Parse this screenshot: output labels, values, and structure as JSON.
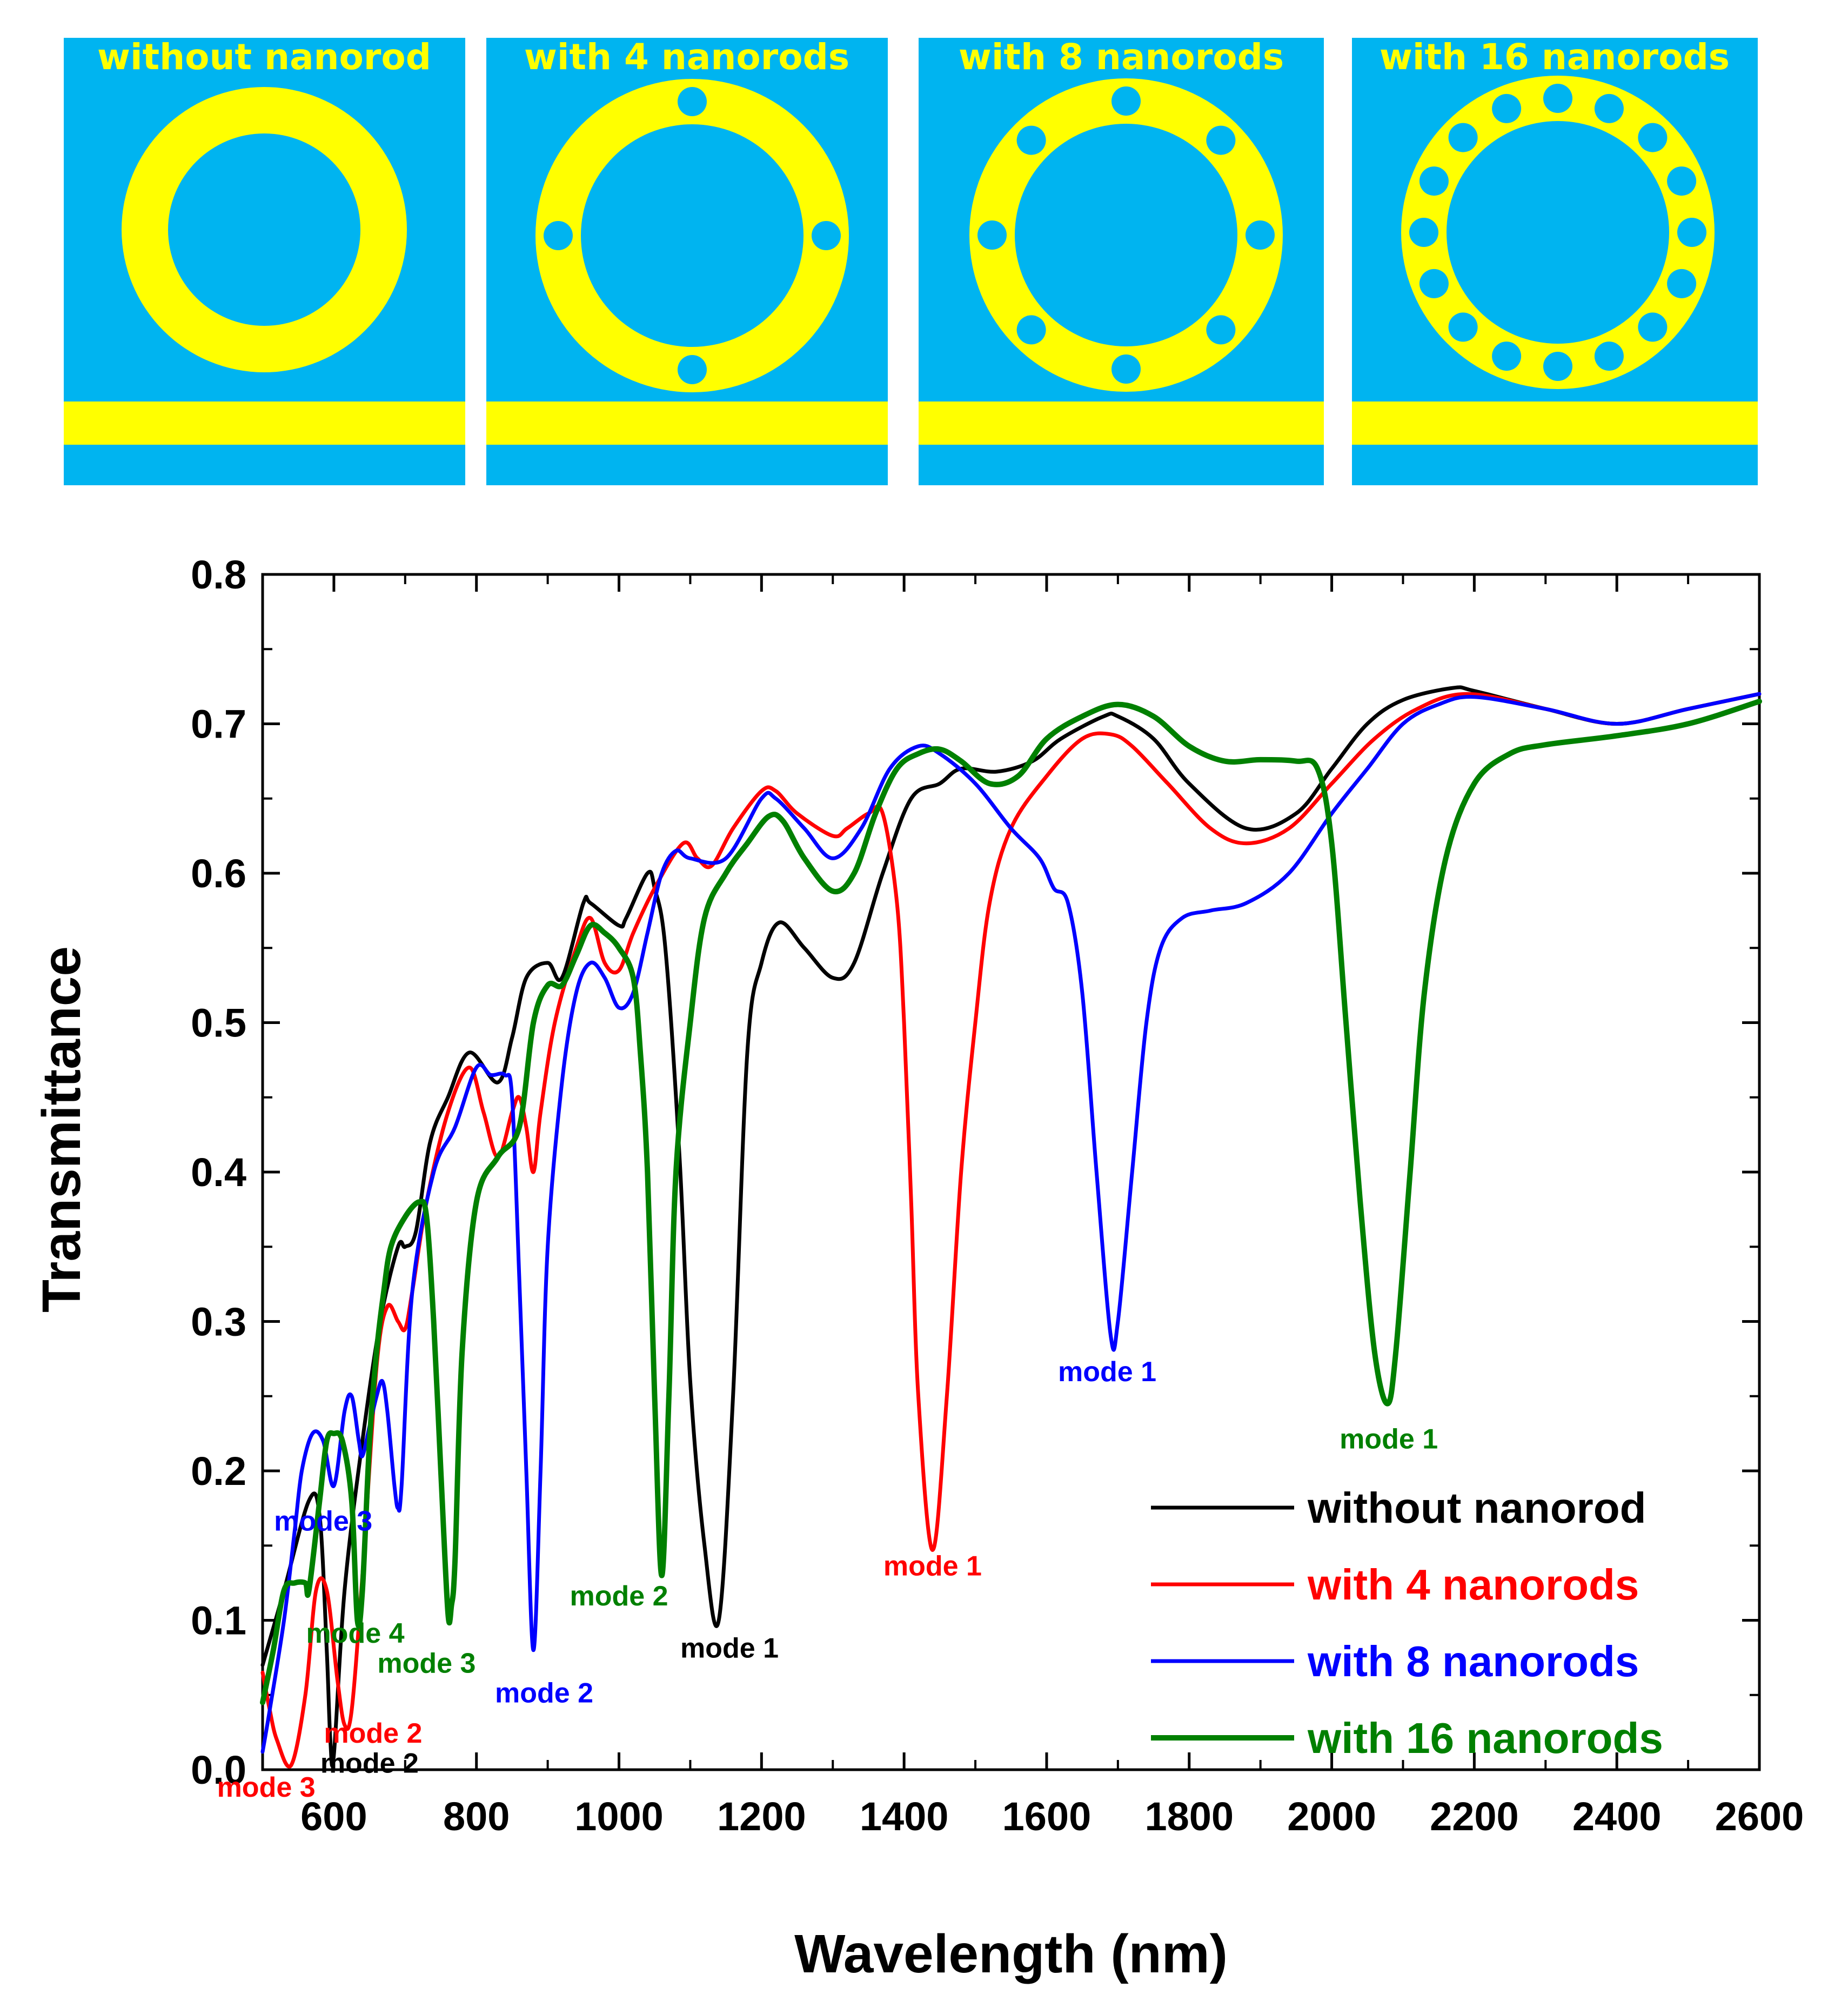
{
  "colors": {
    "blue_bg": "#00b4f0",
    "ring_yellow": "#ffff00",
    "black": "#000000",
    "red": "#ff0000",
    "blue": "#0000ff",
    "green": "#008000"
  },
  "panels": [
    {
      "title": "without nanorod",
      "nanorods": 0
    },
    {
      "title": "with 4 nanorods",
      "nanorods": 4
    },
    {
      "title": "with 8 nanorods",
      "nanorods": 8
    },
    {
      "title": "with 16 nanorods",
      "nanorods": 16
    }
  ],
  "chart_data": {
    "type": "line",
    "title": "",
    "xlabel": "Wavelength (nm)",
    "ylabel": "Transmittance",
    "xlim": [
      500,
      2600
    ],
    "ylim": [
      0.0,
      0.8
    ],
    "xticks": [
      600,
      800,
      1000,
      1200,
      1400,
      1600,
      1800,
      2000,
      2200,
      2400,
      2600
    ],
    "xtick_labels": [
      "600",
      "800",
      "1000",
      "1200",
      "1400",
      "1600",
      "1800",
      "2000",
      "2200",
      "2400",
      "2600"
    ],
    "yticks": [
      0.0,
      0.1,
      0.2,
      0.3,
      0.4,
      0.5,
      0.6,
      0.7,
      0.8
    ],
    "ytick_labels": [
      "0.0",
      "0.1",
      "0.2",
      "0.3",
      "0.4",
      "0.5",
      "0.6",
      "0.7",
      "0.8"
    ],
    "legend_position": "bottom-right",
    "series": [
      {
        "name": "without nanorod",
        "color": "#000000",
        "x": [
          500,
          530,
          565,
          580,
          590,
          595,
          600,
          615,
          640,
          665,
          690,
          700,
          715,
          735,
          760,
          790,
          830,
          850,
          870,
          900,
          920,
          950,
          960,
          1000,
          1010,
          1040,
          1050,
          1065,
          1085,
          1100,
          1120,
          1140,
          1160,
          1180,
          1200,
          1225,
          1260,
          1300,
          1330,
          1370,
          1410,
          1450,
          1480,
          1530,
          1580,
          1620,
          1680,
          1700,
          1750,
          1800,
          1880,
          1950,
          2000,
          2050,
          2100,
          2170,
          2200,
          2300,
          2400,
          2500,
          2600
        ],
        "y": [
          0.07,
          0.12,
          0.18,
          0.17,
          0.08,
          0.02,
          0.01,
          0.12,
          0.22,
          0.3,
          0.35,
          0.35,
          0.36,
          0.42,
          0.45,
          0.48,
          0.46,
          0.49,
          0.53,
          0.54,
          0.53,
          0.58,
          0.58,
          0.565,
          0.57,
          0.6,
          0.59,
          0.55,
          0.41,
          0.26,
          0.15,
          0.1,
          0.25,
          0.48,
          0.54,
          0.567,
          0.55,
          0.53,
          0.54,
          0.6,
          0.65,
          0.66,
          0.67,
          0.668,
          0.675,
          0.69,
          0.705,
          0.705,
          0.69,
          0.66,
          0.63,
          0.64,
          0.67,
          0.7,
          0.716,
          0.724,
          0.722,
          0.71,
          0.7,
          0.71,
          0.72
        ],
        "annotations": [
          {
            "text": "mode 2",
            "x": 650,
            "y": -0.002
          },
          {
            "text": "mode 1",
            "x": 1155,
            "y": 0.075
          }
        ]
      },
      {
        "name": "with 4 nanorods",
        "color": "#ff0000",
        "x": [
          500,
          510,
          520,
          540,
          560,
          575,
          590,
          605,
          615,
          625,
          640,
          660,
          675,
          690,
          700,
          710,
          730,
          760,
          790,
          810,
          830,
          850,
          860,
          870,
          880,
          890,
          910,
          940,
          960,
          980,
          1000,
          1020,
          1050,
          1090,
          1110,
          1130,
          1160,
          1200,
          1220,
          1250,
          1300,
          1320,
          1350,
          1370,
          1390,
          1400,
          1410,
          1420,
          1440,
          1460,
          1480,
          1500,
          1520,
          1550,
          1600,
          1650,
          1690,
          1720,
          1770,
          1830,
          1880,
          1940,
          2000,
          2060,
          2120,
          2190,
          2300,
          2400,
          2500,
          2600
        ],
        "y": [
          0.065,
          0.04,
          0.02,
          0.003,
          0.05,
          0.12,
          0.12,
          0.06,
          0.03,
          0.04,
          0.13,
          0.27,
          0.31,
          0.3,
          0.295,
          0.32,
          0.38,
          0.44,
          0.47,
          0.44,
          0.41,
          0.44,
          0.45,
          0.43,
          0.4,
          0.44,
          0.5,
          0.55,
          0.57,
          0.54,
          0.535,
          0.56,
          0.59,
          0.62,
          0.61,
          0.605,
          0.63,
          0.655,
          0.655,
          0.64,
          0.625,
          0.63,
          0.64,
          0.64,
          0.58,
          0.5,
          0.38,
          0.25,
          0.147,
          0.25,
          0.4,
          0.5,
          0.58,
          0.63,
          0.665,
          0.69,
          0.693,
          0.685,
          0.66,
          0.63,
          0.62,
          0.63,
          0.66,
          0.69,
          0.71,
          0.72,
          0.71,
          0.7,
          0.71,
          0.72
        ],
        "annotations": [
          {
            "text": "mode 3",
            "x": 505,
            "y": -0.018
          },
          {
            "text": "mode 2",
            "x": 655,
            "y": 0.018
          },
          {
            "text": "mode 1",
            "x": 1440,
            "y": 0.13
          }
        ]
      },
      {
        "name": "with 8 nanorods",
        "color": "#0000ff",
        "x": [
          500,
          510,
          530,
          545,
          555,
          570,
          585,
          600,
          615,
          625,
          635,
          640,
          650,
          660,
          668,
          675,
          685,
          690,
          695,
          710,
          740,
          770,
          800,
          820,
          840,
          850,
          860,
          870,
          880,
          890,
          900,
          920,
          940,
          960,
          980,
          1000,
          1020,
          1040,
          1060,
          1080,
          1100,
          1150,
          1200,
          1220,
          1260,
          1300,
          1340,
          1380,
          1420,
          1450,
          1500,
          1550,
          1590,
          1610,
          1630,
          1650,
          1670,
          1690,
          1700,
          1720,
          1740,
          1760,
          1790,
          1830,
          1880,
          1940,
          2000,
          2050,
          2100,
          2150,
          2200,
          2300,
          2400,
          2500,
          2600
        ],
        "y": [
          0.012,
          0.04,
          0.1,
          0.16,
          0.2,
          0.225,
          0.22,
          0.19,
          0.24,
          0.25,
          0.22,
          0.21,
          0.23,
          0.25,
          0.26,
          0.24,
          0.19,
          0.175,
          0.19,
          0.32,
          0.4,
          0.43,
          0.47,
          0.465,
          0.465,
          0.45,
          0.33,
          0.2,
          0.08,
          0.2,
          0.35,
          0.46,
          0.52,
          0.54,
          0.53,
          0.51,
          0.52,
          0.56,
          0.6,
          0.615,
          0.61,
          0.61,
          0.65,
          0.65,
          0.63,
          0.61,
          0.63,
          0.67,
          0.685,
          0.68,
          0.66,
          0.63,
          0.61,
          0.59,
          0.58,
          0.52,
          0.4,
          0.29,
          0.3,
          0.4,
          0.5,
          0.55,
          0.57,
          0.575,
          0.58,
          0.6,
          0.64,
          0.67,
          0.7,
          0.713,
          0.718,
          0.71,
          0.7,
          0.71,
          0.72
        ],
        "annotations": [
          {
            "text": "mode 3",
            "x": 585,
            "y": 0.16
          },
          {
            "text": "mode 2",
            "x": 895,
            "y": 0.045
          },
          {
            "text": "mode 1",
            "x": 1685,
            "y": 0.26
          }
        ]
      },
      {
        "name": "with 16 nanorods",
        "color": "#008000",
        "x": [
          500,
          515,
          530,
          545,
          560,
          565,
          580,
          590,
          600,
          612,
          625,
          633,
          640,
          650,
          660,
          670,
          680,
          700,
          720,
          730,
          740,
          750,
          760,
          765,
          770,
          780,
          800,
          830,
          860,
          880,
          900,
          920,
          940,
          960,
          980,
          1000,
          1020,
          1030,
          1040,
          1050,
          1060,
          1070,
          1080,
          1100,
          1120,
          1150,
          1180,
          1210,
          1230,
          1260,
          1300,
          1330,
          1360,
          1390,
          1420,
          1450,
          1480,
          1520,
          1560,
          1600,
          1650,
          1700,
          1750,
          1800,
          1850,
          1900,
          1950,
          1980,
          2000,
          2020,
          2040,
          2060,
          2078,
          2090,
          2110,
          2130,
          2160,
          2200,
          2250,
          2300,
          2400,
          2500,
          2600
        ],
        "y": [
          0.045,
          0.08,
          0.12,
          0.125,
          0.125,
          0.12,
          0.18,
          0.22,
          0.225,
          0.22,
          0.18,
          0.1,
          0.12,
          0.22,
          0.28,
          0.32,
          0.35,
          0.37,
          0.38,
          0.37,
          0.3,
          0.2,
          0.105,
          0.11,
          0.14,
          0.28,
          0.38,
          0.41,
          0.43,
          0.5,
          0.525,
          0.525,
          0.545,
          0.565,
          0.56,
          0.55,
          0.53,
          0.48,
          0.4,
          0.25,
          0.13,
          0.25,
          0.4,
          0.5,
          0.57,
          0.6,
          0.62,
          0.638,
          0.635,
          0.61,
          0.588,
          0.6,
          0.64,
          0.67,
          0.68,
          0.683,
          0.675,
          0.66,
          0.665,
          0.69,
          0.705,
          0.713,
          0.705,
          0.685,
          0.675,
          0.676,
          0.675,
          0.67,
          0.62,
          0.5,
          0.38,
          0.28,
          0.245,
          0.28,
          0.4,
          0.52,
          0.61,
          0.66,
          0.68,
          0.686,
          0.692,
          0.7,
          0.715
        ],
        "annotations": [
          {
            "text": "mode 4",
            "x": 630,
            "y": 0.085
          },
          {
            "text": "mode 3",
            "x": 730,
            "y": 0.065
          },
          {
            "text": "mode 2",
            "x": 1000,
            "y": 0.11
          },
          {
            "text": "mode 1",
            "x": 2080,
            "y": 0.215
          }
        ]
      }
    ]
  }
}
